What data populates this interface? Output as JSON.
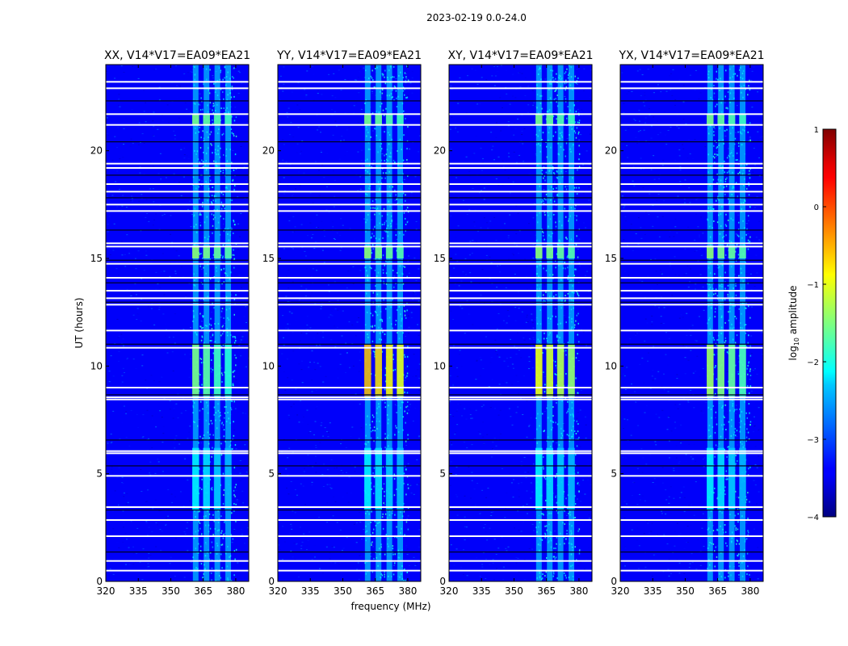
{
  "figure": {
    "suptitle": "2023-02-19 0.0-24.0",
    "ylabel": "UT (hours)",
    "xlabel": "frequency (MHz)"
  },
  "chart_data": {
    "type": "heatmap",
    "title": "2023-02-19 0.0-24.0",
    "xlabel": "frequency (MHz)",
    "ylabel": "UT (hours)",
    "xlim": [
      320,
      386
    ],
    "ylim": [
      0,
      24
    ],
    "xticks": [
      320,
      335,
      350,
      365,
      380
    ],
    "yticks": [
      0,
      5,
      10,
      15,
      20
    ],
    "colormap": "jet",
    "colorbar": {
      "label": "log10 amplitude",
      "range": [
        -4,
        1
      ],
      "ticks": [
        1,
        0,
        -1,
        -2,
        -3,
        -4
      ],
      "tick_labels": [
        "1",
        "0",
        "−1",
        "−2",
        "−3",
        "−4"
      ]
    },
    "background_level": -3.4,
    "rfi_freq_range_mhz": [
      360,
      380
    ],
    "rfi_columns_mhz": [
      361.5,
      366.5,
      371.5,
      376.5
    ],
    "missing_time_rows_hours": [
      0.5,
      0.95,
      1.35,
      2.1,
      2.85,
      3.3,
      3.45,
      4.9,
      5.35,
      5.95,
      6.05,
      6.55,
      8.45,
      8.55,
      8.65,
      9.0,
      10.85,
      11.0,
      11.65,
      12.85,
      12.95,
      13.15,
      13.5,
      13.85,
      14.1,
      14.75,
      14.9,
      15.55,
      15.7,
      16.3,
      17.2,
      17.5,
      17.8,
      18.1,
      18.45,
      18.85,
      19.2,
      19.4,
      20.4,
      21.2,
      21.7,
      22.3,
      22.9,
      23.2
    ],
    "rfi_events": [
      {
        "t_start": 8.6,
        "t_end": 11.0,
        "level": -1.6
      },
      {
        "t_start": 15.0,
        "t_end": 15.6,
        "level": -1.4
      },
      {
        "t_start": 21.2,
        "t_end": 21.7,
        "level": -1.5
      },
      {
        "t_start": 3.3,
        "t_end": 6.2,
        "level": -2.2
      }
    ],
    "panels": [
      {
        "title": "XX, V14*V17=EA09*EA21",
        "peak": -1.5
      },
      {
        "title": "YY, V14*V17=EA09*EA21",
        "peak": -0.5
      },
      {
        "title": "XY, V14*V17=EA09*EA21",
        "peak": -0.9
      },
      {
        "title": "YX, V14*V17=EA09*EA21",
        "peak": -1.3
      }
    ]
  }
}
